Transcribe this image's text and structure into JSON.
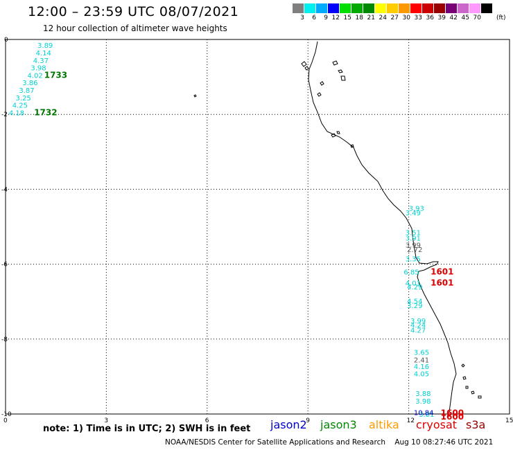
{
  "header": {
    "title": "12:00 – 23:59 UTC 08/07/2021",
    "subtitle": "12 hour collection of altimeter wave heights"
  },
  "colorbar": {
    "colors": [
      "#7f7f7f",
      "#00f0f0",
      "#00aaff",
      "#0000ff",
      "#00dd00",
      "#00aa00",
      "#008800",
      "#ffff00",
      "#ffcc00",
      "#ff9900",
      "#ff0000",
      "#cc0000",
      "#990000",
      "#770077",
      "#cc66cc",
      "#ff99ff",
      "#000000"
    ],
    "labels": [
      "3",
      "6",
      "9",
      "12",
      "15",
      "18",
      "21",
      "24",
      "27",
      "30",
      "33",
      "36",
      "39",
      "42",
      "45",
      "70"
    ],
    "unit": "(ft)"
  },
  "axes": {
    "x_ticks": [
      "0",
      "3",
      "6",
      "9",
      "12",
      "15"
    ],
    "y_ticks": [
      "0",
      "-2",
      "-4",
      "-6",
      "-8",
      "-10"
    ]
  },
  "wave_labels": {
    "cyan": [
      {
        "text": "3.89",
        "x": 0.95,
        "y": -0.15
      },
      {
        "text": "4.14",
        "x": 0.9,
        "y": -0.35
      },
      {
        "text": "4.37",
        "x": 0.82,
        "y": -0.55
      },
      {
        "text": "3.98",
        "x": 0.75,
        "y": -0.75
      },
      {
        "text": "4.02",
        "x": 0.65,
        "y": -0.95
      },
      {
        "text": "3.86",
        "x": 0.5,
        "y": -1.15
      },
      {
        "text": "3.87",
        "x": 0.4,
        "y": -1.35
      },
      {
        "text": "3.25",
        "x": 0.3,
        "y": -1.55
      },
      {
        "text": "4.25",
        "x": 0.2,
        "y": -1.75
      },
      {
        "text": "4.18",
        "x": 0.1,
        "y": -1.95
      },
      {
        "text": "3.93",
        "x": 12.0,
        "y": -4.5
      },
      {
        "text": "3.49",
        "x": 11.9,
        "y": -4.62
      },
      {
        "text": "3.51",
        "x": 11.9,
        "y": -5.15
      },
      {
        "text": "3.91",
        "x": 11.9,
        "y": -5.3
      },
      {
        "text": "3.35",
        "x": 11.9,
        "y": -5.85
      },
      {
        "text": "6.85",
        "x": 11.85,
        "y": -6.2
      },
      {
        "text": "4.01",
        "x": 11.9,
        "y": -6.5
      },
      {
        "text": "4.29",
        "x": 11.95,
        "y": -6.6
      },
      {
        "text": "4.54",
        "x": 11.95,
        "y": -6.98
      },
      {
        "text": "3.29",
        "x": 11.95,
        "y": -7.1
      },
      {
        "text": "3.99",
        "x": 12.05,
        "y": -7.5
      },
      {
        "text": "4.24",
        "x": 12.05,
        "y": -7.62
      },
      {
        "text": "4.27",
        "x": 12.05,
        "y": -7.75
      },
      {
        "text": "3.65",
        "x": 12.15,
        "y": -8.35
      },
      {
        "text": "4.16",
        "x": 12.15,
        "y": -8.72
      },
      {
        "text": "4.05",
        "x": 12.15,
        "y": -8.92
      },
      {
        "text": "3.88",
        "x": 12.2,
        "y": -9.45
      },
      {
        "text": "3.98",
        "x": 12.2,
        "y": -9.65
      },
      {
        "text": "3.81",
        "x": 12.3,
        "y": -10.0
      }
    ],
    "black": [
      {
        "text": "3.99",
        "x": 11.9,
        "y": -5.48
      },
      {
        "text": "2.72",
        "x": 11.95,
        "y": -5.6
      },
      {
        "text": "2.41",
        "x": 12.15,
        "y": -8.55
      }
    ],
    "blue": [
      {
        "text": "10.84",
        "x": 12.15,
        "y": -9.95
      }
    ],
    "green_times": [
      {
        "text": "1733",
        "x": 1.15,
        "y": -0.95
      },
      {
        "text": "1732",
        "x": 0.85,
        "y": -1.95
      }
    ],
    "red_times": [
      {
        "text": "1601",
        "x": 12.65,
        "y": -6.2
      },
      {
        "text": "1601",
        "x": 12.65,
        "y": -6.5
      },
      {
        "text": "1600",
        "x": 12.95,
        "y": -9.97
      },
      {
        "text": "1600",
        "x": 12.95,
        "y": -10.07
      }
    ]
  },
  "legend": [
    {
      "label": "jason2",
      "color": "#0000cc"
    },
    {
      "label": "jason3",
      "color": "#008800"
    },
    {
      "label": "altika",
      "color": "#ff9900"
    },
    {
      "label": "cryosat",
      "color": "#dd0000"
    },
    {
      "label": "s3a",
      "color": "#990000"
    }
  ],
  "note": "note:  1) Time is in UTC; 2) SWH is in feet",
  "footer": "NOAA/NESDIS Center for Satellite Applications and Research    Aug 10 08:27:46 UTC 2021"
}
